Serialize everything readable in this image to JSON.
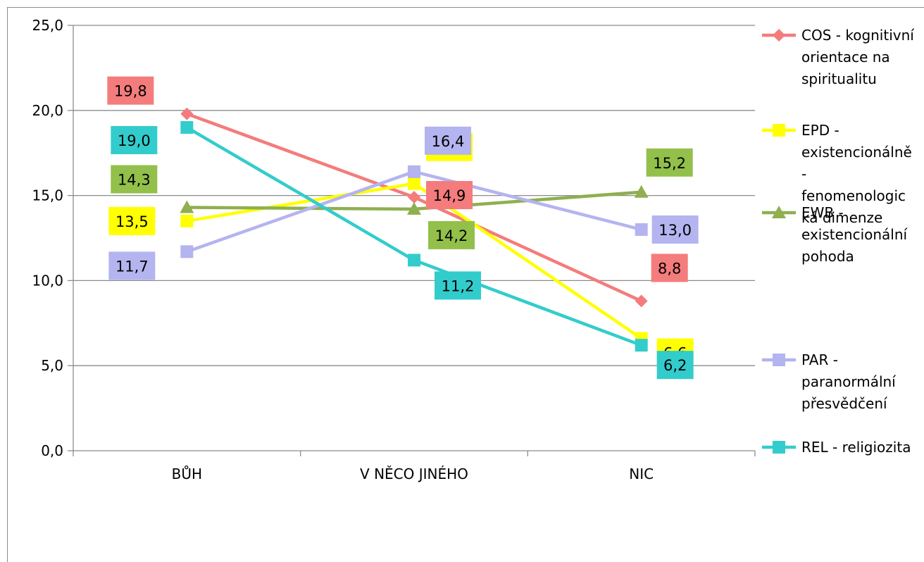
{
  "chart_data": {
    "type": "line",
    "categories": [
      "BŮH",
      "V NĚCO JINÉHO",
      "NIC"
    ],
    "ylim": [
      0,
      25
    ],
    "yticks": [
      "0,0",
      "5,0",
      "10,0",
      "15,0",
      "20,0",
      "25,0"
    ],
    "grid": true,
    "legend_position": "right",
    "series": [
      {
        "name": "COS - kognitivní orientace na spiritualitu",
        "legend_lines": [
          "COS - kognitivní",
          "orientace na",
          "spiritualitu"
        ],
        "values": [
          19.8,
          14.9,
          8.8
        ],
        "labels": [
          "19,8",
          "14,9",
          "8,8"
        ],
        "color": "#f47c7c",
        "label_bg": "#f47c7c",
        "marker": "diamond"
      },
      {
        "name": "EPD - existencionálně-fenomenologická dimenze",
        "legend_lines": [
          "EPD -",
          "existencionálně",
          "-",
          "fenomenologic",
          "ká dimenze"
        ],
        "values": [
          13.5,
          15.7,
          6.6
        ],
        "labels": [
          "13,5",
          "15,7",
          "6,6"
        ],
        "color": "#ffff00",
        "label_bg": "#ffff00",
        "marker": "square"
      },
      {
        "name": "EWB - existencionální pohoda",
        "legend_lines": [
          "EWB -",
          "existencionální",
          "pohoda"
        ],
        "values": [
          14.3,
          14.2,
          15.2
        ],
        "labels": [
          "14,3",
          "14,2",
          "15,2"
        ],
        "color": "#8faf50",
        "label_bg": "#92c04a",
        "marker": "triangle"
      },
      {
        "name": "PAR - paranormální přesvědčení",
        "legend_lines": [
          "PAR -",
          "paranormální",
          "přesvědčení"
        ],
        "values": [
          11.7,
          16.4,
          13.0
        ],
        "labels": [
          "11,7",
          "16,4",
          "13,0"
        ],
        "color": "#b4b4f0",
        "label_bg": "#b4b4f0",
        "marker": "square"
      },
      {
        "name": "REL - religiozita",
        "legend_lines": [
          "REL - religiozita"
        ],
        "values": [
          19.0,
          11.2,
          6.2
        ],
        "labels": [
          "19,0",
          "11,2",
          "6,2"
        ],
        "color": "#33cccc",
        "label_bg": "#33cccc",
        "marker": "square"
      }
    ]
  }
}
